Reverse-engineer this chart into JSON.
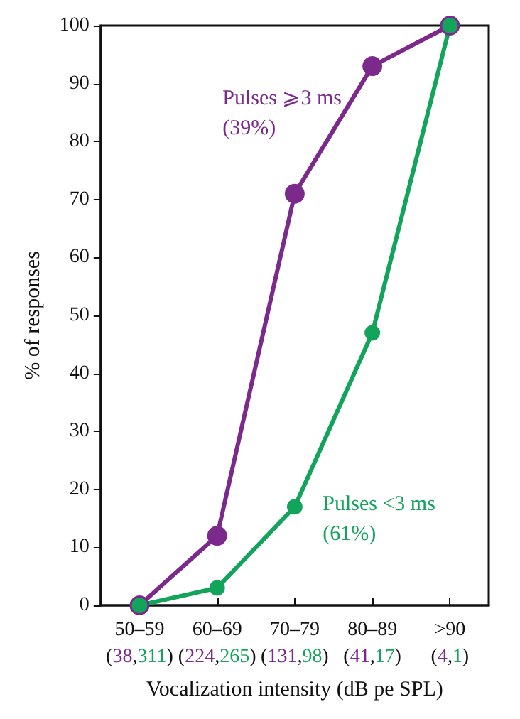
{
  "chart_data": {
    "type": "line",
    "xlabel": "Vocalization intensity (dB pe SPL)",
    "ylabel": "% of responses",
    "categories": [
      "50–59\n(38,311)",
      "60–69\n(224,265)",
      "70–79\n(131,98)",
      "80–89\n(41,17)",
      ">90\n(4,1)"
    ],
    "series": [
      {
        "name": "Pulses ⩾3 ms\n(39%)",
        "color": "#7b2a8c",
        "values": [
          0,
          12,
          71,
          93,
          100
        ]
      },
      {
        "name": "Pulses <3 ms\n(61%)",
        "color": "#12a45a",
        "values": [
          0,
          3,
          17,
          47,
          100
        ]
      }
    ],
    "ylim": [
      0,
      100
    ],
    "yticks": [
      0,
      10,
      20,
      30,
      40,
      50,
      60,
      70,
      80,
      90,
      100
    ],
    "grid": false,
    "legend": false,
    "marker": "circle",
    "line_style": "solid"
  }
}
